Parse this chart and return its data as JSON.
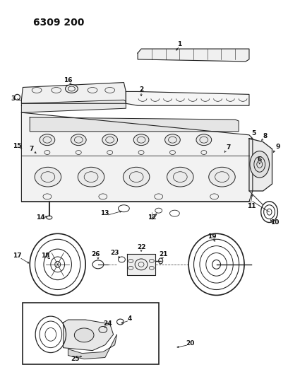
{
  "title": "6309 200",
  "bg_color": "#ffffff",
  "title_fontsize": 10,
  "lc": "#222222",
  "lw": 0.7
}
